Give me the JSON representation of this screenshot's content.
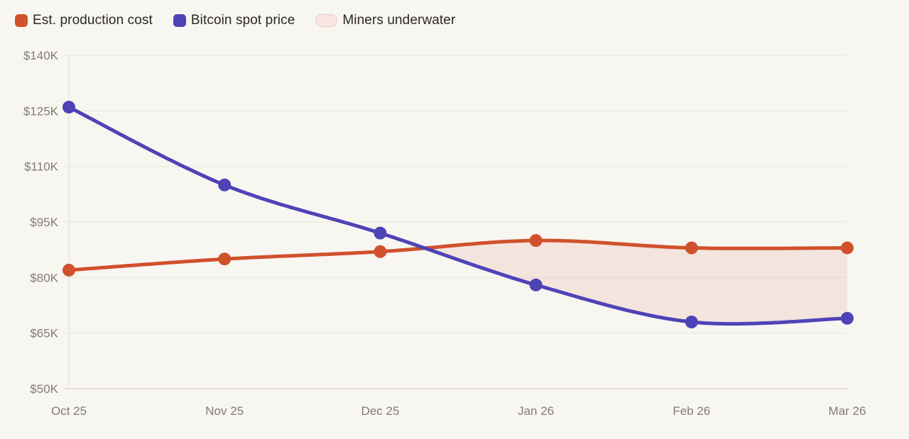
{
  "page": {
    "background": "#F8F6F1"
  },
  "legend": {
    "items": [
      {
        "label": "Est. production cost",
        "swatch": "square",
        "color": "#D0512C"
      },
      {
        "label": "Bitcoin spot price",
        "swatch": "square",
        "color": "#4E43B6"
      },
      {
        "label": "Miners underwater",
        "swatch": "pill",
        "fill": "#F9E6E2",
        "border": "#EACAC3"
      }
    ]
  },
  "chart_data": {
    "type": "line",
    "categories": [
      "Oct 25",
      "Nov 25",
      "Dec 25",
      "Jan 26",
      "Feb 26",
      "Mar 26"
    ],
    "series": [
      {
        "name": "Est. production cost",
        "color": "#D0512C",
        "values": [
          82000,
          85000,
          87000,
          90000,
          88000,
          88000
        ]
      },
      {
        "name": "Bitcoin spot price",
        "color": "#4E43B6",
        "values": [
          126000,
          105000,
          92000,
          78000,
          68000,
          69000
        ]
      }
    ],
    "area_between": {
      "name": "Miners underwater",
      "rule": "shaded where Bitcoin spot price is below Est. production cost",
      "fill": "rgba(208,72,58,0.10)"
    },
    "y_ticks": [
      {
        "label": "$140K",
        "value": 140000
      },
      {
        "label": "$125K",
        "value": 125000
      },
      {
        "label": "$110K",
        "value": 110000
      },
      {
        "label": "$95K",
        "value": 95000
      },
      {
        "label": "$80K",
        "value": 80000
      },
      {
        "label": "$65K",
        "value": 65000
      },
      {
        "label": "$50K",
        "value": 50000
      }
    ],
    "ylim": [
      50000,
      140000
    ],
    "unit": "USD",
    "grid": "horizontal",
    "legend_position": "top-left",
    "colors": {
      "grid": "#ECE9E2",
      "bottom_axis": "#DBD6CC",
      "left_axis": "#E6E2DA",
      "tick_text": "#817C73"
    }
  }
}
